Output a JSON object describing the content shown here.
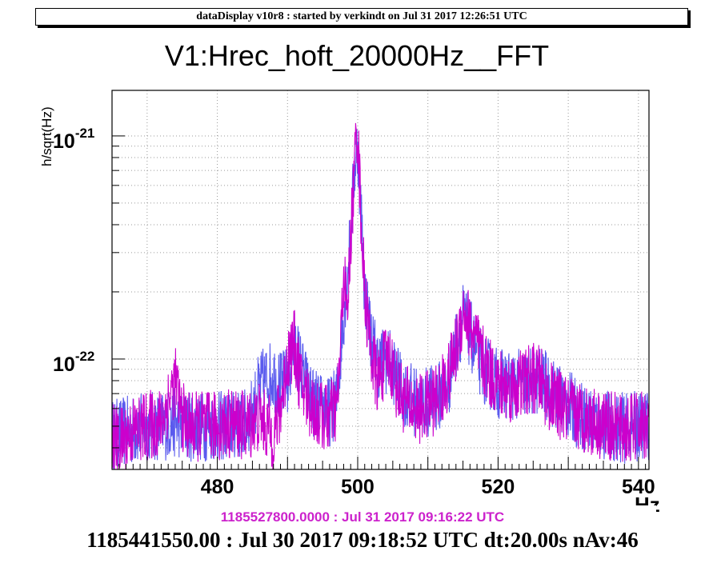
{
  "header": {
    "text": "dataDisplay v10r8 : started by verkindt on Jul 31 2017 12:26:51 UTC"
  },
  "footer": {
    "current_run": "1185527800.0000 : Jul 31 2017 09:16:22 UTC",
    "reference_run": "1185441550.00 : Jul 30 2017 09:18:52 UTC dt:20.00s nAv:46"
  },
  "colors": {
    "current": "#cc00cc",
    "reference": "#5a5aee",
    "grid": "#9a9a9a",
    "frame": "#000000"
  },
  "chart_data": {
    "type": "line",
    "title": "V1:Hrec_hoft_20000Hz__FFT",
    "xlabel": "Hz",
    "ylabel": "h/sqrt(Hz)",
    "xlim": [
      465,
      541.5
    ],
    "ylim": [
      3.2e-23,
      1.6e-21
    ],
    "yscale": "log",
    "grid": true,
    "x_ticks": [
      480,
      500,
      520,
      540
    ],
    "y_ticks": [
      {
        "value": 1e-22,
        "base": "10",
        "exponent": "-22"
      },
      {
        "value": 1e-21,
        "base": "10",
        "exponent": "-21"
      }
    ],
    "series": [
      {
        "color": "#cc00cc",
        "x": [
          465,
          466,
          468,
          470,
          472,
          473,
          474,
          475,
          476,
          478,
          480,
          482,
          484,
          485,
          486,
          487,
          488,
          489,
          490,
          490.5,
          491,
          491.5,
          492,
          493,
          494,
          495,
          496,
          497,
          497.5,
          498,
          498.5,
          499,
          499.5,
          499.8,
          500,
          500.3,
          500.7,
          501,
          501.5,
          502,
          502.5,
          503,
          503.5,
          504,
          504.5,
          505,
          505.5,
          506,
          507,
          508,
          509,
          510,
          511,
          512,
          513,
          514,
          514.5,
          515,
          515.5,
          516,
          517,
          518,
          519,
          520,
          521,
          522,
          523,
          524,
          525,
          526,
          527,
          528,
          530,
          532,
          534,
          536,
          538,
          540,
          541.5
        ],
        "values": [
          4.5e-23,
          4.2e-23,
          4.8e-23,
          5e-23,
          5.2e-23,
          6.5e-23,
          8e-23,
          5.5e-23,
          5e-23,
          5e-23,
          5e-23,
          5.2e-23,
          5e-23,
          5.2e-23,
          5.5e-23,
          5e-23,
          4.5e-23,
          6e-23,
          1e-22,
          1.1e-22,
          1.15e-22,
          9e-23,
          7.5e-23,
          6.5e-23,
          5.8e-23,
          5.5e-23,
          5.5e-23,
          6e-23,
          1e-22,
          2.5e-22,
          1.5e-22,
          3.5e-22,
          6.5e-22,
          1.1e-21,
          1.05e-21,
          6e-22,
          3e-22,
          2e-22,
          1.4e-22,
          1.05e-22,
          8.5e-23,
          8e-23,
          9e-23,
          1e-22,
          1.02e-22,
          9e-23,
          7.8e-23,
          7e-23,
          6.5e-23,
          6e-23,
          6e-23,
          6.2e-23,
          6.6e-23,
          7.2e-23,
          8.5e-23,
          1.1e-22,
          1.35e-22,
          1.65e-22,
          1.55e-22,
          1.4e-22,
          1.15e-22,
          9.5e-23,
          8.5e-23,
          7.8e-23,
          7.5e-23,
          7.5e-23,
          7.6e-23,
          8e-23,
          8.2e-23,
          8e-23,
          7e-23,
          6.5e-23,
          5.8e-23,
          5.5e-23,
          5.2e-23,
          5e-23,
          4.8e-23,
          5e-23,
          5.2e-23
        ]
      },
      {
        "color": "#5a5aee",
        "x": [
          465,
          468,
          470,
          472,
          474,
          476,
          478,
          480,
          482,
          484,
          485,
          486,
          487,
          488,
          489,
          490,
          491,
          492,
          493,
          494,
          496,
          497,
          498,
          499,
          499.5,
          500,
          500.5,
          501,
          502,
          503,
          504,
          505,
          506,
          508,
          510,
          512,
          513,
          514,
          515,
          516,
          517,
          518,
          520,
          522,
          524,
          526,
          528,
          530,
          532,
          534,
          536,
          538,
          540,
          541.5
        ],
        "values": [
          4.6e-23,
          4.8e-23,
          5e-23,
          5e-23,
          5.2e-23,
          5e-23,
          5e-23,
          5e-23,
          5e-23,
          5.1e-23,
          5.8e-23,
          7.5e-23,
          8.2e-23,
          8.5e-23,
          7.5e-23,
          8e-23,
          1.15e-22,
          9e-23,
          7e-23,
          6.2e-23,
          5.8e-23,
          6.5e-23,
          1.6e-22,
          3.5e-22,
          7e-22,
          9e-22,
          4.5e-22,
          2e-22,
          1.2e-22,
          9.5e-23,
          1e-22,
          9.2e-23,
          7.5e-23,
          6.5e-23,
          6.4e-23,
          7e-23,
          8e-23,
          1.15e-22,
          1.55e-22,
          1.3e-22,
          1.05e-22,
          9e-23,
          7.8e-23,
          7.6e-23,
          7.8e-23,
          8e-23,
          7e-23,
          6.2e-23,
          5.5e-23,
          5.2e-23,
          5e-23,
          4.9e-23,
          5e-23,
          5.1e-23
        ]
      }
    ]
  }
}
